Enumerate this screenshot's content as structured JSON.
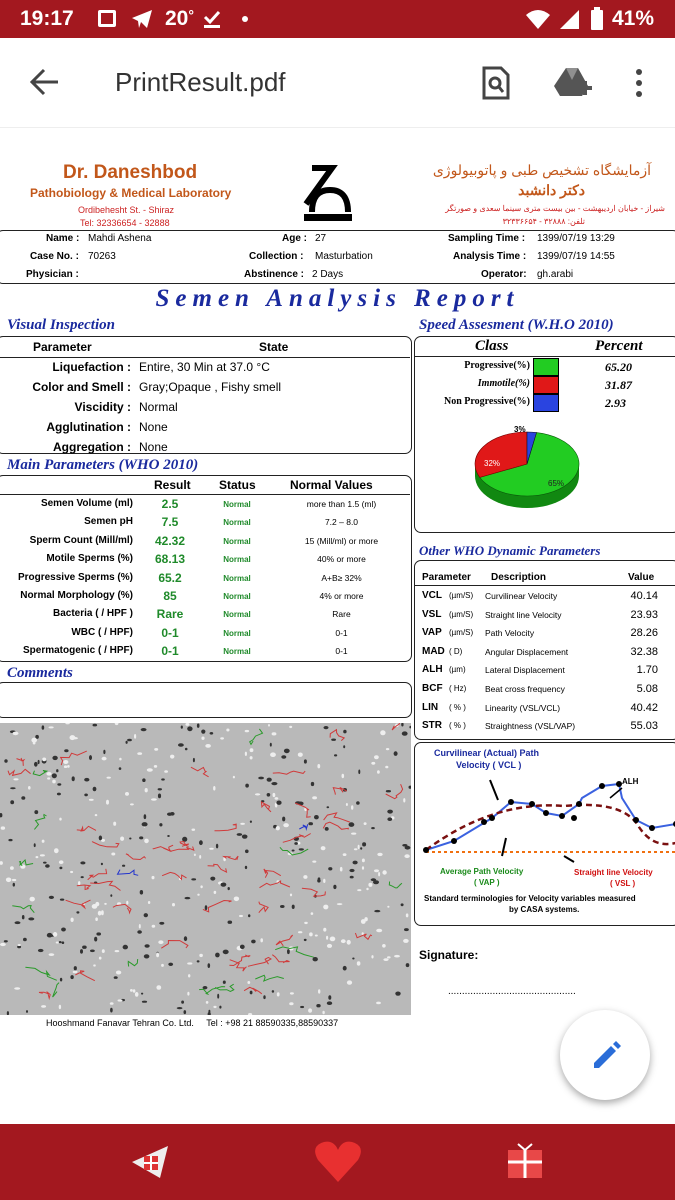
{
  "status_bar": {
    "time": "19:17",
    "temp": "20",
    "temp_unit": "°",
    "battery": "41%"
  },
  "app_bar": {
    "title": "PrintResult.pdf"
  },
  "lab": {
    "name_en": "Dr. Daneshbod",
    "subtitle_en": "Pathobiology & Medical Laboratory",
    "address_en": "Ordibehesht St. - Shiraz",
    "tel_en": "Tel: 32336654 - 32888",
    "name_fa": "آزمایشگاه تشخیص طبی و پاتوبیولوژی",
    "doctor_fa": "دکتر دانشبد",
    "address_fa": "شیراز - خیابان اردیبهشت - بین بیست متری سینما سعدی و صورتگر",
    "tel_fa": "تلفن: ۳۲۸۸۸ - ۳۲۳۳۶۶۵۴"
  },
  "patient": {
    "name_label": "Name :",
    "name": "Mahdi Ashena",
    "age_label": "Age :",
    "age": "27",
    "sampling_label": "Sampling Time :",
    "sampling": "1399/07/19 13:29",
    "case_label": "Case No. :",
    "case": "70263",
    "collection_label": "Collection :",
    "collection": "Masturbation",
    "analysis_label": "Analysis Time :",
    "analysis": "1399/07/19 14:55",
    "physician_label": "Physician :",
    "abstinence_label": "Abstinence :",
    "abstinence": "2 Days",
    "operator_label": "Operator:",
    "operator": "gh.arabi"
  },
  "report_title": "Semen Analysis Report",
  "visual": {
    "heading": "Visual Inspection",
    "col_param": "Parameter",
    "col_state": "State",
    "rows": [
      {
        "label": "Liquefaction :",
        "value": "Entire, 30  Min at  37.0 °C"
      },
      {
        "label": "Color and Smell :",
        "value": "Gray;Opaque  ,    Fishy smell"
      },
      {
        "label": "Viscidity :",
        "value": "Normal"
      },
      {
        "label": "Agglutination :",
        "value": "None"
      },
      {
        "label": "Aggregation :",
        "value": "None"
      }
    ]
  },
  "speed": {
    "heading": "Speed Assesment (W.H.O 2010)",
    "col_class": "Class",
    "col_percent": "Percent",
    "rows": [
      {
        "label": "Progressive(%)",
        "value": "65.20",
        "color": "#22cc22"
      },
      {
        "label": "Immotile(%)",
        "value": "31.87",
        "color": "#e01818"
      },
      {
        "label": "Non Progressive(%)",
        "value": "2.93",
        "color": "#2a44e0"
      }
    ],
    "pie_labels": {
      "nonprog": "3%",
      "immotile": "32%",
      "prog": "65%"
    }
  },
  "main": {
    "heading": "Main Parameters (WHO 2010)",
    "col_result": "Result",
    "col_status": "Status",
    "col_normal": "Normal Values",
    "rows": [
      {
        "label": "Semen Volume (ml)",
        "result": "2.5",
        "status": "Normal",
        "normal": "more than 1.5 (ml)"
      },
      {
        "label": "Semen pH",
        "result": "7.5",
        "status": "Normal",
        "normal": "7.2 – 8.0"
      },
      {
        "label": "Sperm Count (Mill/ml)",
        "result": "42.32",
        "status": "Normal",
        "normal": "15 (Mill/ml) or more"
      },
      {
        "label": "Motile Sperms (%)",
        "result": "68.13",
        "status": "Normal",
        "normal": "40% or more"
      },
      {
        "label": "Progressive Sperms (%)",
        "result": "65.2",
        "status": "Normal",
        "normal": "A+B≥ 32%"
      },
      {
        "label": "Normal Morphology (%)",
        "result": "85",
        "status": "Normal",
        "normal": "4% or more"
      },
      {
        "label": "Bacteria ( / HPF )",
        "result": "Rare",
        "status": "Normal",
        "normal": "Rare"
      },
      {
        "label": "WBC ( / HPF)",
        "result": "0-1",
        "status": "Normal",
        "normal": "0-1"
      },
      {
        "label": "Spermatogenic  ( / HPF)",
        "result": "0-1",
        "status": "Normal",
        "normal": "0-1"
      }
    ]
  },
  "comments_heading": "Comments",
  "dynamic": {
    "heading": "Other WHO Dynamic Parameters",
    "col_param": "Parameter",
    "col_desc": "Description",
    "col_value": "Value",
    "rows": [
      {
        "param": "VCL",
        "unit": "(µm/S)",
        "desc": "Curvilinear Velocity",
        "value": "40.14"
      },
      {
        "param": "VSL",
        "unit": "(µm/S)",
        "desc": "Straight line Velocity",
        "value": "23.93"
      },
      {
        "param": "VAP",
        "unit": "(µm/S)",
        "desc": "Path Velocity",
        "value": "28.26"
      },
      {
        "param": "MAD",
        "unit": "( D)",
        "desc": "Angular Displacement",
        "value": "32.38"
      },
      {
        "param": "ALH",
        "unit": "(µm)",
        "desc": "Lateral Displacement",
        "value": "1.70"
      },
      {
        "param": "BCF",
        "unit": "( Hz)",
        "desc": "Beat cross frequency",
        "value": "5.08"
      },
      {
        "param": "LIN",
        "unit": "( % )",
        "desc": "Linearity (VSL/VCL)",
        "value": "40.42"
      },
      {
        "param": "STR",
        "unit": "( % )",
        "desc": "Straightness (VSL/VAP)",
        "value": "55.03"
      }
    ]
  },
  "diagram": {
    "vcl": "Curvilinear (Actual) Path",
    "vcl2": "Velocity ( VCL )",
    "alh": "ALH",
    "vap": "Average Path Velocity",
    "vap2": "( VAP )",
    "vsl": "Straight line Velocity",
    "vsl2": "( VSL )",
    "caption": "Standard terminologies for Velocity variables measured",
    "caption2": "by CASA systems."
  },
  "signature_label": "Signature:",
  "signature_line": "..............................................",
  "footer": "Hooshmand Fanavar Tehran Co. Ltd.     Tel : +98 21 88590335,88590337"
}
